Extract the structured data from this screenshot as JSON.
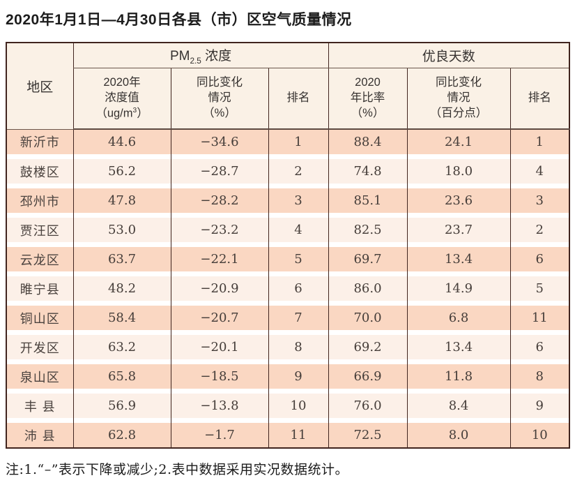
{
  "title": "2020年1月1日—4月30日各县（市）区空气质量情况",
  "note": "注:1.“–”表示下降或减少;2.表中数据采用实况数据统计。",
  "colors": {
    "stripe_dark": "#fad7c2",
    "stripe_light": "#fcf0e8",
    "header_bg": "#faf1e6",
    "border_dark": "#40241e",
    "border_soft": "#6a564c"
  },
  "table": {
    "header": {
      "region": "地区",
      "pm_group_prefix": "PM",
      "pm_group_sub": "2.5",
      "pm_group_suffix": " 浓度",
      "good_group": "优良天数",
      "conc_l1": "2020年",
      "conc_l2": "浓度值",
      "conc_l3a": "（ug/m",
      "conc_sup": "3",
      "conc_l3b": "）",
      "yoy1_l1": "同比变化",
      "yoy1_l2": "情况",
      "yoy1_l3": "（%）",
      "rank1": "排名",
      "ratio_l1": "2020",
      "ratio_l2": "年比率",
      "ratio_l3": "（%）",
      "yoy2_l1": "同比变化",
      "yoy2_l2": "情况",
      "yoy2_l3": "（百分点）",
      "rank2": "排名"
    },
    "rows": [
      {
        "region": "新沂市",
        "conc": "44.6",
        "conc_yoy": "−34.6",
        "conc_rank": "1",
        "ratio": "88.4",
        "ratio_yoy": "24.1",
        "ratio_rank": "1"
      },
      {
        "region": "鼓楼区",
        "conc": "56.2",
        "conc_yoy": "−28.7",
        "conc_rank": "2",
        "ratio": "74.8",
        "ratio_yoy": "18.0",
        "ratio_rank": "4"
      },
      {
        "region": "邳州市",
        "conc": "47.8",
        "conc_yoy": "−28.2",
        "conc_rank": "3",
        "ratio": "85.1",
        "ratio_yoy": "23.6",
        "ratio_rank": "3"
      },
      {
        "region": "贾汪区",
        "conc": "53.0",
        "conc_yoy": "−23.2",
        "conc_rank": "4",
        "ratio": "82.5",
        "ratio_yoy": "23.7",
        "ratio_rank": "2"
      },
      {
        "region": "云龙区",
        "conc": "63.7",
        "conc_yoy": "−22.1",
        "conc_rank": "5",
        "ratio": "69.7",
        "ratio_yoy": "13.4",
        "ratio_rank": "6"
      },
      {
        "region": "睢宁县",
        "conc": "48.2",
        "conc_yoy": "−20.9",
        "conc_rank": "6",
        "ratio": "86.0",
        "ratio_yoy": "14.9",
        "ratio_rank": "5"
      },
      {
        "region": "铜山区",
        "conc": "58.4",
        "conc_yoy": "−20.7",
        "conc_rank": "7",
        "ratio": "70.0",
        "ratio_yoy": "6.8",
        "ratio_rank": "11"
      },
      {
        "region": "开发区",
        "conc": "63.2",
        "conc_yoy": "−20.1",
        "conc_rank": "8",
        "ratio": "69.2",
        "ratio_yoy": "13.4",
        "ratio_rank": "6"
      },
      {
        "region": "泉山区",
        "conc": "65.8",
        "conc_yoy": "−18.5",
        "conc_rank": "9",
        "ratio": "66.9",
        "ratio_yoy": "11.8",
        "ratio_rank": "8"
      },
      {
        "region": "丰 县",
        "conc": "56.9",
        "conc_yoy": "−13.8",
        "conc_rank": "10",
        "ratio": "76.0",
        "ratio_yoy": "8.4",
        "ratio_rank": "9"
      },
      {
        "region": "沛 县",
        "conc": "62.8",
        "conc_yoy": "−1.7",
        "conc_rank": "11",
        "ratio": "72.5",
        "ratio_yoy": "8.0",
        "ratio_rank": "10"
      }
    ]
  }
}
